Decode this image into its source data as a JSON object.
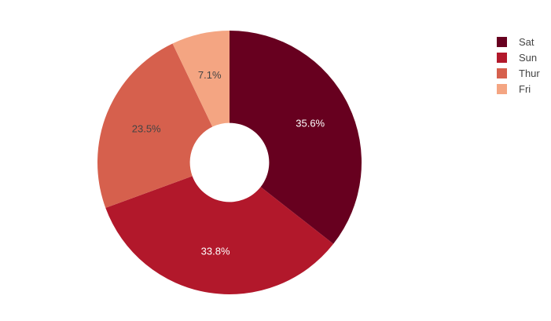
{
  "chart_data": {
    "type": "pie",
    "hole": 0.3,
    "direction": "clockwise",
    "categories": [
      "Sat",
      "Sun",
      "Thur",
      "Fri"
    ],
    "values": [
      35.6,
      33.8,
      23.5,
      7.1
    ],
    "labels": [
      "35.6%",
      "33.8%",
      "23.5%",
      "7.1%"
    ],
    "colors": [
      "#67001f",
      "#b2182b",
      "#d6604d",
      "#f4a582"
    ],
    "label_colors": [
      "#ffffff",
      "#ffffff",
      "#444444",
      "#444444"
    ],
    "legend": {
      "placement": "top-right",
      "entries": [
        "Sat",
        "Sun",
        "Thur",
        "Fri"
      ]
    }
  }
}
